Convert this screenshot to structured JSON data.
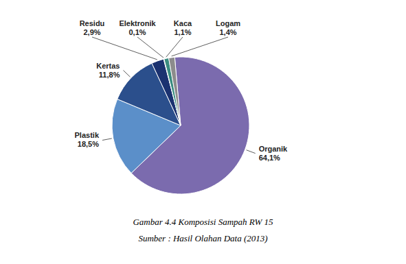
{
  "chart_data": {
    "type": "pie",
    "title": "Gambar 4.4 Komposisi Sampah RW 15",
    "subtitle": "Sumber : Hasil Olahan Data (2013)",
    "categories": [
      "Organik",
      "Plastik",
      "Kertas",
      "Residu",
      "Elektronik",
      "Kaca",
      "Logam"
    ],
    "values": [
      64.1,
      18.5,
      11.8,
      2.9,
      0.1,
      1.1,
      1.4
    ],
    "value_labels": [
      "64,1%",
      "18,5%",
      "11,8%",
      "2,9%",
      "0,1%",
      "1,1%",
      "1,4%"
    ],
    "colors": [
      "#7B6BAE",
      "#5B8FC9",
      "#2B4F8C",
      "#1B3270",
      "#C8A898",
      "#3A8C80",
      "#8C8C8C"
    ],
    "data_labels": true
  }
}
